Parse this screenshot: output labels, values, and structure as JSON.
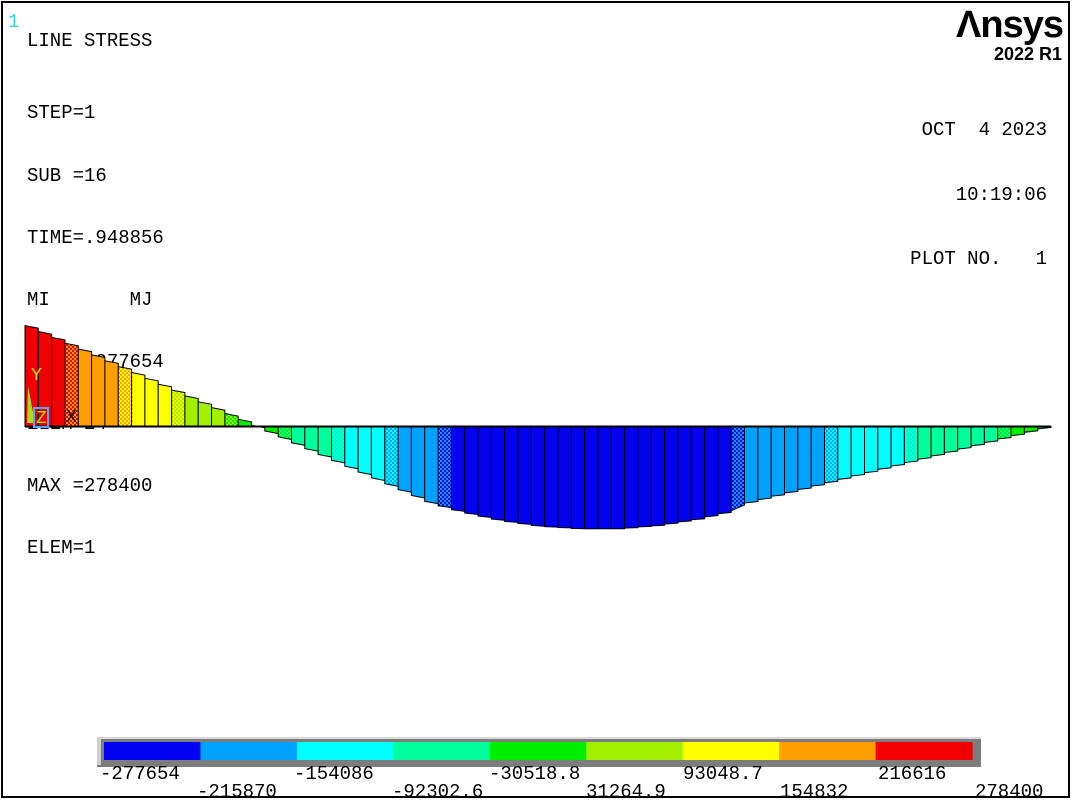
{
  "window": {
    "number": "1"
  },
  "annotations": {
    "title": "LINE STRESS",
    "info_lines": [
      "STEP=1",
      "SUB =16",
      "TIME=.948856",
      "MI       MJ",
      "MIN =-277654",
      "ELEM=24",
      "MAX =278400",
      "ELEM=1"
    ]
  },
  "branding": {
    "logo": "Λnsys",
    "version": "2022 R1"
  },
  "plot_meta": {
    "date": "OCT  4 2023",
    "time": "10:19:06",
    "plot_no": "PLOT NO.   1"
  },
  "triad": {
    "x": "X",
    "y": "Y",
    "z": "Z"
  },
  "chart_data": {
    "type": "area",
    "title": "LINE STRESS",
    "description": "Element-wise colored line-stress (bending moment) diagram along a beam; bars hang from the beam axis, color-binned by the 9-level contour legend",
    "load_step": 1,
    "substep": 16,
    "time": 0.948856,
    "min": -277654,
    "min_elem": 24,
    "max": 278400,
    "max_elem": 1,
    "legend_labels": [
      "-277654",
      "-215870",
      "-154086",
      "-92302.6",
      "-30518.8",
      "31264.9",
      "93048.7",
      "154832",
      "216616",
      "278400"
    ],
    "legend_values": [
      -277654,
      -215870,
      -154086,
      -92302.6,
      -30518.8,
      31264.9,
      93048.7,
      154832,
      216616,
      278400
    ],
    "palette": [
      "#0202f0",
      "#00a2ff",
      "#00ffff",
      "#00ff9c",
      "#00ee00",
      "#a2f000",
      "#ffff00",
      "#ffa000",
      "#f00000"
    ],
    "n_elements": 77,
    "envelope_segments": [
      {
        "type": "linear",
        "pts": [
          [
            0.0,
            278400
          ],
          [
            0.3971,
            -207905
          ]
        ]
      },
      {
        "type": "poly",
        "pts": [
          [
            0.3971,
            -207905
          ],
          [
            0.4244,
            -230120
          ],
          [
            0.4634,
            -254679
          ],
          [
            0.5024,
            -270786
          ],
          [
            0.5415,
            -277654
          ],
          [
            0.5805,
            -277648
          ],
          [
            0.6195,
            -268402
          ],
          [
            0.6585,
            -250705
          ],
          [
            0.6946,
            -226811
          ]
        ]
      },
      {
        "type": "linear",
        "pts": [
          [
            0.6946,
            -215000
          ],
          [
            1.0,
            0
          ]
        ]
      }
    ]
  }
}
